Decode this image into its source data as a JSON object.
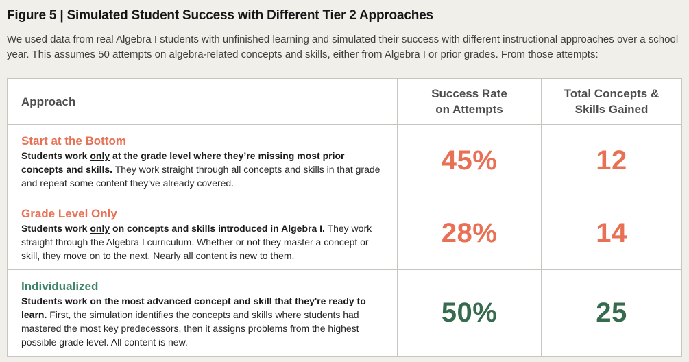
{
  "figure": {
    "title": "Figure 5 | Simulated Student Success with Different Tier 2 Approaches",
    "description": "We used data from real Algebra I students with unfinished learning and simulated their success with different instructional approaches over a school year. This assumes 50 attempts on algebra-related concepts and skills, either from Algebra I or prior grades. From those attempts:"
  },
  "colors": {
    "page_background": "#F1EFE9",
    "table_background": "#FFFFFF",
    "border": "#C8C5BF",
    "header_text": "#4D4D4D",
    "title_text": "#161616",
    "body_text": "#262626",
    "orange_accent": "#E87054",
    "green_accent": "#3E8565",
    "green_value": "#376B4E"
  },
  "table": {
    "columns": [
      {
        "id": "approach",
        "lines": [
          "Approach"
        ]
      },
      {
        "id": "success-rate",
        "lines": [
          "Success Rate",
          "on Attempts"
        ]
      },
      {
        "id": "skills-gained",
        "lines": [
          "Total Concepts &",
          "Skills Gained"
        ]
      }
    ],
    "rows": [
      {
        "approach": "Start at the Bottom",
        "accent_color": "#E87054",
        "value_color": "#E87054",
        "description": [
          {
            "text": "Students work ",
            "bold": true
          },
          {
            "text": "only",
            "bold": true,
            "underline": true
          },
          {
            "text": " at the grade level where they’re missing most prior concepts and skills.",
            "bold": true
          },
          {
            "text": " They work straight through all concepts and skills in that grade and repeat some content they've already covered.",
            "bold": false
          }
        ],
        "success_rate": "45%",
        "skills_gained": "12"
      },
      {
        "approach": "Grade Level Only",
        "accent_color": "#E87054",
        "value_color": "#E87054",
        "description": [
          {
            "text": "Students work ",
            "bold": true
          },
          {
            "text": "only",
            "bold": true,
            "underline": true
          },
          {
            "text": " on concepts and skills introduced in Algebra I.",
            "bold": true
          },
          {
            "text": " They work straight through the Algebra I curriculum. Whether or not they master a concept or skill, they move on to the next. Nearly all content is new to them.",
            "bold": false
          }
        ],
        "success_rate": "28%",
        "skills_gained": "14"
      },
      {
        "approach": "Individualized",
        "accent_color": "#3E8565",
        "value_color": "#376B4E",
        "description": [
          {
            "text": "Students work on the most advanced concept and skill that they're ready to learn.",
            "bold": true
          },
          {
            "text": " First, the simulation identifies the concepts and skills where students had mastered the most key predecessors, then it assigns problems from the highest possible grade level. All content is new.",
            "bold": false
          }
        ],
        "success_rate": "50%",
        "skills_gained": "25"
      }
    ]
  },
  "chart_data": {
    "type": "table",
    "title": "Figure 5 | Simulated Student Success with Different Tier 2 Approaches",
    "columns": [
      "Approach",
      "Success Rate on Attempts",
      "Total Concepts & Skills Gained"
    ],
    "rows": [
      [
        "Start at the Bottom",
        "45%",
        "12"
      ],
      [
        "Grade Level Only",
        "28%",
        "14"
      ],
      [
        "Individualized",
        "50%",
        "25"
      ]
    ]
  }
}
